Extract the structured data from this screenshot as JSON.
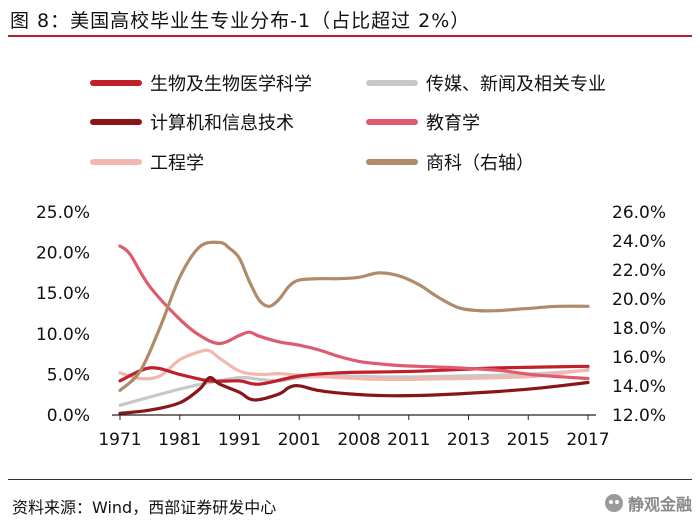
{
  "figure_title": "图 8：美国高校毕业生专业分布-1（占比超过 2%）",
  "source_text": "资料来源：Wind，西部证券研发中心",
  "watermark_text": "静观金融",
  "chart_data": {
    "type": "line",
    "title": "图 8：美国高校毕业生专业分布-1（占比超过 2%）",
    "x_tick_labels": [
      "1971",
      "1981",
      "1991",
      "2001",
      "2008",
      "2011",
      "2013",
      "2015",
      "2017"
    ],
    "x_index_range": [
      0,
      47
    ],
    "x_tick_positions": [
      0,
      6,
      12,
      18,
      24,
      29,
      35,
      41,
      47
    ],
    "y_left": {
      "range": [
        0,
        25
      ],
      "ticks": [
        0,
        5,
        10,
        15,
        20,
        25
      ],
      "tick_labels": [
        "0.0%",
        "5.0%",
        "10.0%",
        "15.0%",
        "20.0%",
        "25.0%"
      ]
    },
    "y_right": {
      "range": [
        12,
        26
      ],
      "ticks": [
        12,
        14,
        16,
        18,
        20,
        22,
        24,
        26
      ],
      "tick_labels": [
        "12.0%",
        "14.0%",
        "16.0%",
        "18.0%",
        "20.0%",
        "22.0%",
        "24.0%",
        "26.0%"
      ]
    },
    "legend_position": "top",
    "series": [
      {
        "name": "生物及生物医学科学",
        "axis": "left",
        "color": "#c0202a",
        "points": [
          [
            0,
            4.2
          ],
          [
            3,
            5.8
          ],
          [
            6,
            5.0
          ],
          [
            9,
            4.2
          ],
          [
            12,
            4.2
          ],
          [
            14,
            3.8
          ],
          [
            18,
            4.8
          ],
          [
            22,
            5.2
          ],
          [
            26,
            5.3
          ],
          [
            30,
            5.4
          ],
          [
            34,
            5.6
          ],
          [
            38,
            5.8
          ],
          [
            42,
            5.9
          ],
          [
            47,
            6.0
          ]
        ]
      },
      {
        "name": "传媒、新闻及相关专业",
        "axis": "left",
        "color": "#c8c8c8",
        "points": [
          [
            0,
            1.2
          ],
          [
            3,
            2.2
          ],
          [
            6,
            3.2
          ],
          [
            9,
            4.0
          ],
          [
            12,
            4.6
          ],
          [
            14,
            4.4
          ],
          [
            16,
            4.2
          ],
          [
            18,
            4.6
          ],
          [
            22,
            4.8
          ],
          [
            26,
            4.7
          ],
          [
            30,
            4.7
          ],
          [
            34,
            4.8
          ],
          [
            38,
            4.9
          ],
          [
            42,
            5.1
          ],
          [
            47,
            5.5
          ]
        ]
      },
      {
        "name": "计算机和信息技术",
        "axis": "left",
        "color": "#8a1518",
        "points": [
          [
            0,
            0.2
          ],
          [
            3,
            0.6
          ],
          [
            6,
            1.5
          ],
          [
            8,
            3.2
          ],
          [
            9,
            4.6
          ],
          [
            10,
            3.8
          ],
          [
            12,
            2.8
          ],
          [
            13,
            2.0
          ],
          [
            14,
            1.9
          ],
          [
            16,
            2.6
          ],
          [
            17,
            3.4
          ],
          [
            18,
            3.6
          ],
          [
            20,
            3.0
          ],
          [
            23,
            2.6
          ],
          [
            26,
            2.4
          ],
          [
            30,
            2.4
          ],
          [
            34,
            2.6
          ],
          [
            38,
            2.9
          ],
          [
            42,
            3.3
          ],
          [
            47,
            4.0
          ]
        ]
      },
      {
        "name": "教育学",
        "axis": "left",
        "color": "#dd5c70",
        "points": [
          [
            0,
            20.8
          ],
          [
            1,
            19.8
          ],
          [
            3,
            15.8
          ],
          [
            6,
            11.8
          ],
          [
            8,
            9.8
          ],
          [
            10,
            8.8
          ],
          [
            12,
            9.8
          ],
          [
            13,
            10.2
          ],
          [
            14,
            9.7
          ],
          [
            16,
            9.0
          ],
          [
            18,
            8.6
          ],
          [
            20,
            8.0
          ],
          [
            22,
            7.2
          ],
          [
            24,
            6.6
          ],
          [
            26,
            6.3
          ],
          [
            28,
            6.1
          ],
          [
            30,
            6.0
          ],
          [
            34,
            5.8
          ],
          [
            38,
            5.5
          ],
          [
            42,
            4.9
          ],
          [
            47,
            4.5
          ]
        ]
      },
      {
        "name": "工程学",
        "axis": "left",
        "color": "#f2b8b0",
        "points": [
          [
            0,
            5.2
          ],
          [
            2,
            4.5
          ],
          [
            4,
            4.8
          ],
          [
            6,
            6.8
          ],
          [
            8,
            7.8
          ],
          [
            9,
            7.9
          ],
          [
            10,
            7.0
          ],
          [
            12,
            5.4
          ],
          [
            14,
            5.0
          ],
          [
            16,
            5.1
          ],
          [
            18,
            4.9
          ],
          [
            22,
            4.6
          ],
          [
            26,
            4.4
          ],
          [
            30,
            4.4
          ],
          [
            34,
            4.5
          ],
          [
            38,
            4.6
          ],
          [
            42,
            4.8
          ],
          [
            47,
            5.6
          ]
        ]
      },
      {
        "name": "商科（右轴）",
        "axis": "right",
        "color": "#b08b6a",
        "points": [
          [
            0,
            13.7
          ],
          [
            2,
            15.0
          ],
          [
            4,
            18.0
          ],
          [
            6,
            21.5
          ],
          [
            8,
            23.6
          ],
          [
            10,
            23.9
          ],
          [
            11,
            23.5
          ],
          [
            12,
            22.8
          ],
          [
            13,
            21.2
          ],
          [
            14,
            19.9
          ],
          [
            15,
            19.5
          ],
          [
            16,
            20.0
          ],
          [
            17,
            20.9
          ],
          [
            18,
            21.3
          ],
          [
            20,
            21.4
          ],
          [
            22,
            21.4
          ],
          [
            24,
            21.5
          ],
          [
            26,
            21.8
          ],
          [
            28,
            21.6
          ],
          [
            30,
            21.0
          ],
          [
            32,
            20.1
          ],
          [
            34,
            19.4
          ],
          [
            36,
            19.2
          ],
          [
            38,
            19.2
          ],
          [
            40,
            19.3
          ],
          [
            42,
            19.4
          ],
          [
            44,
            19.5
          ],
          [
            47,
            19.5
          ]
        ]
      }
    ]
  }
}
